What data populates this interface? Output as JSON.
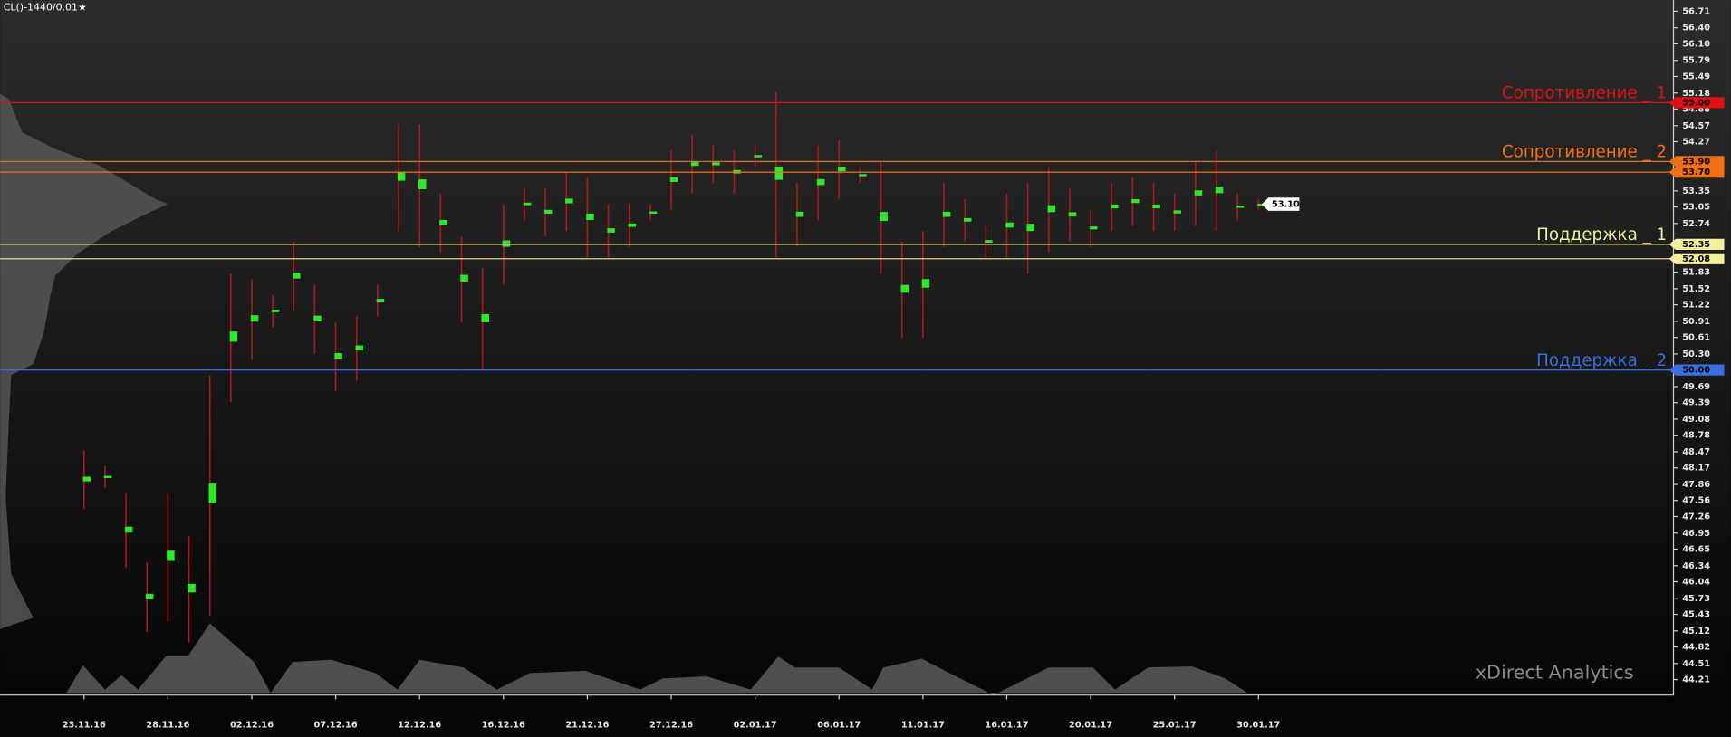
{
  "chart_data": {
    "type": "range",
    "title": "CL()-1440/0.01★",
    "watermark": "xDirect Analytics",
    "color": "#b01818",
    "cluster_color": "#2ee82e",
    "categories": [
      "23.11.16",
      null,
      null,
      null,
      "28.11.16",
      null,
      null,
      null,
      "02.12.16",
      null,
      null,
      null,
      "07.12.16",
      null,
      null,
      null,
      "12.12.16",
      null,
      null,
      null,
      "16.12.16",
      null,
      null,
      null,
      "21.12.16",
      null,
      null,
      null,
      "27.12.16",
      null,
      null,
      null,
      "02.01.17",
      null,
      null,
      null,
      "06.01.17",
      null,
      null,
      null,
      "11.01.17",
      null,
      null,
      null,
      "16.01.17",
      null,
      null,
      null,
      "20.01.17",
      null,
      null,
      null,
      "25.01.17",
      null,
      null,
      null,
      "30.01.17"
    ],
    "high": [
      48.5,
      48.2,
      47.7,
      46.4,
      47.7,
      46.9,
      49.9,
      51.8,
      51.7,
      51.4,
      52.4,
      51.6,
      50.9,
      51.0,
      51.6,
      54.6,
      54.6,
      53.3,
      52.5,
      51.9,
      53.1,
      53.4,
      53.4,
      53.7,
      53.6,
      53.1,
      53.1,
      53.1,
      54.1,
      54.4,
      54.2,
      54.1,
      54.2,
      55.2,
      53.5,
      54.2,
      54.3,
      53.8,
      53.9,
      52.4,
      52.6,
      53.5,
      53.2,
      52.7,
      53.3,
      53.5,
      53.8,
      53.4,
      53.0,
      53.5,
      53.6,
      53.5,
      53.3,
      53.9,
      54.1,
      53.3,
      53.2
    ],
    "low": [
      47.4,
      47.8,
      46.3,
      45.1,
      45.3,
      44.9,
      45.4,
      49.4,
      50.2,
      50.8,
      51.1,
      50.3,
      49.6,
      49.8,
      51.0,
      52.6,
      52.3,
      52.2,
      50.9,
      50.0,
      51.6,
      52.8,
      52.5,
      52.6,
      52.1,
      52.1,
      52.3,
      52.8,
      53.0,
      53.3,
      53.5,
      53.3,
      53.8,
      52.1,
      52.3,
      52.8,
      53.2,
      53.5,
      51.8,
      50.6,
      50.6,
      52.3,
      52.4,
      52.1,
      52.1,
      51.8,
      52.2,
      52.4,
      52.3,
      52.6,
      52.7,
      52.6,
      52.6,
      52.7,
      52.6,
      52.8,
      53.0
    ],
    "ylim": [
      43.92,
      56.92
    ],
    "yticks": [
      56.71,
      {
        "value": 56.4,
        "label": "56.40"
      },
      {
        "value": 56.1,
        "label": "56.10"
      },
      55.79,
      55.49,
      55.18,
      54.88,
      54.57,
      54.27,
      53.35,
      53.05,
      52.74,
      51.83,
      51.52,
      51.22,
      50.91,
      50.61,
      {
        "value": 50.3,
        "label": "50.30"
      },
      49.69,
      49.39,
      49.08,
      48.78,
      48.47,
      48.17,
      47.86,
      47.56,
      47.26,
      46.95,
      46.65,
      46.34,
      46.04,
      45.73,
      45.43,
      45.12,
      44.82,
      44.51,
      44.21
    ],
    "levels": [
      {
        "name": "Сопротивление _ 1",
        "value": 55,
        "label": "55.00",
        "color": "#e01010"
      },
      {
        "name": "Сопротивление _ 2",
        "value": 53.9,
        "label": "53.90",
        "color": "#f07018"
      },
      {
        "value": 53.7,
        "label": "53.70",
        "color": "#f07018"
      },
      {
        "name": "Поддержка _ 1",
        "value": 52.35,
        "color": "#f4f0a0"
      },
      {
        "value": 52.08,
        "color": "#f4f0a0"
      },
      {
        "name": "Поддержка _ 2",
        "value": 50,
        "label": "50.00",
        "color": "#3a6fe0"
      }
    ],
    "last_price": {
      "value": 53.1,
      "label": "53.10"
    }
  }
}
